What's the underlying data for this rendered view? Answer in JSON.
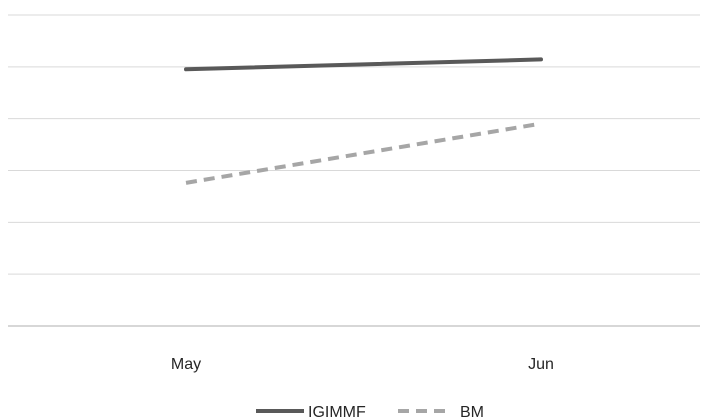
{
  "chart_data": {
    "type": "line",
    "categories": [
      "May",
      "Jun"
    ],
    "series": [
      {
        "name": "IGIMMF",
        "values": [
          92,
          94
        ],
        "color": "#595959",
        "dash": "solid"
      },
      {
        "name": "BM",
        "values": [
          69,
          81
        ],
        "color": "#a6a6a6",
        "dash": "dashed"
      }
    ],
    "ylim": [
      40,
      103
    ],
    "grid": true,
    "legend": "bottom",
    "y_axis_labels_visible": false
  }
}
